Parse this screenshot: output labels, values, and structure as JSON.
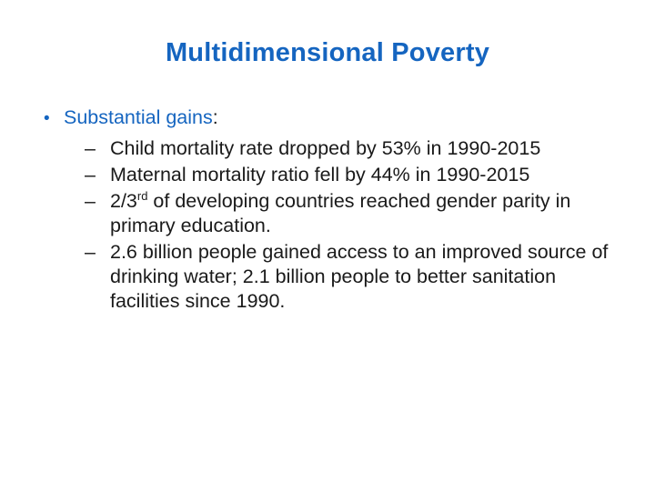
{
  "slide": {
    "title": "Multidimensional Poverty",
    "bullet": {
      "dot": "•",
      "label": "Substantial gains",
      "colon": ":"
    },
    "sub_dash": "–",
    "items": [
      {
        "text": "Child mortality rate dropped by 53% in 1990-2015"
      },
      {
        "text": "Maternal mortality ratio fell by 44% in 1990-2015"
      },
      {
        "pre": "2/3",
        "sup": "rd",
        "post": " of developing countries reached gender parity in primary education."
      },
      {
        "text": "2.6 billion people gained access to an improved source of drinking water; 2.1 billion people to better sanitation facilities since 1990."
      }
    ],
    "colors": {
      "title": "#1565c0",
      "bullet": "#1565c0",
      "text": "#1a1a1a"
    }
  }
}
